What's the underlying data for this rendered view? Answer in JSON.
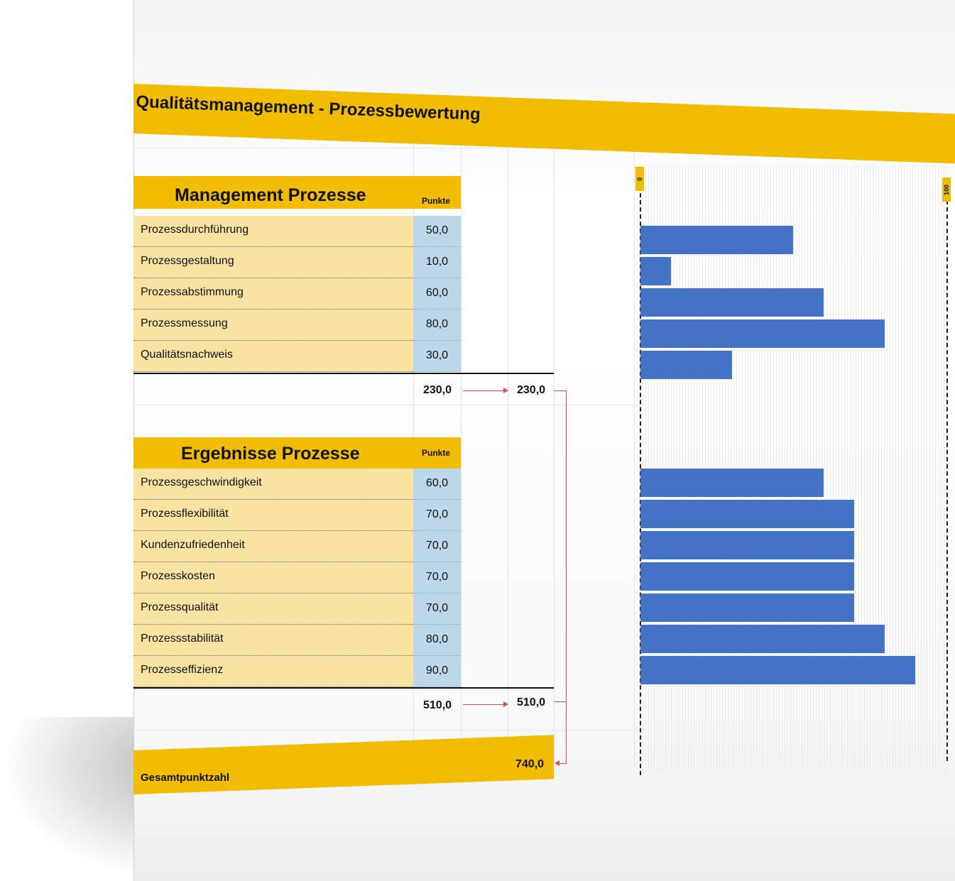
{
  "title": "Qualitätsmanagement - Prozessbewertung",
  "colors": {
    "accent": "#f2bd00",
    "label_bg": "#f8e3a3",
    "value_bg": "#bcd6ea",
    "bar": "#4472c4",
    "arrow": "#e84a4a"
  },
  "management": {
    "title": "Management Prozesse",
    "punkte_label": "Punkte",
    "rows": [
      {
        "label": "Prozessdurchführung",
        "value": "50,0"
      },
      {
        "label": "Prozessgestaltung",
        "value": "10,0"
      },
      {
        "label": "Prozessabstimmung",
        "value": "60,0"
      },
      {
        "label": "Prozessmessung",
        "value": "80,0"
      },
      {
        "label": "Qualitätsnachweis",
        "value": "30,0"
      }
    ],
    "sum": "230,0",
    "sum_carry": "230,0"
  },
  "ergebnisse": {
    "title": "Ergebnisse Prozesse",
    "punkte_label": "Punkte",
    "rows": [
      {
        "label": "Prozessgeschwindigkeit",
        "value": "60,0"
      },
      {
        "label": "Prozessflexibilität",
        "value": "70,0"
      },
      {
        "label": "Kundenzufriedenheit",
        "value": "70,0"
      },
      {
        "label": "Prozesskosten",
        "value": "70,0"
      },
      {
        "label": "Prozessqualität",
        "value": "70,0"
      },
      {
        "label": "Prozessstabilität",
        "value": "80,0"
      },
      {
        "label": "Prozesseffizienz",
        "value": "90,0"
      }
    ],
    "sum": "510,0",
    "sum_carry": "510,0"
  },
  "total": {
    "label": "Gesamtpunktzahl",
    "value": "740,0"
  },
  "chart_data": {
    "type": "bar",
    "orientation": "horizontal",
    "xlim": [
      0,
      100
    ],
    "tick_labels": [
      "0",
      "100"
    ],
    "groups": [
      {
        "categories": [
          "Prozessdurchführung",
          "Prozessgestaltung",
          "Prozessabstimmung",
          "Prozessmessung",
          "Qualitätsnachweis"
        ],
        "values": [
          50,
          10,
          60,
          80,
          30
        ]
      },
      {
        "categories": [
          "Prozessgeschwindigkeit",
          "Prozessflexibilität",
          "Kundenzufriedenheit",
          "Prozesskosten",
          "Prozessqualität",
          "Prozessstabilität",
          "Prozesseffizienz"
        ],
        "values": [
          60,
          70,
          70,
          70,
          70,
          80,
          90
        ]
      }
    ]
  }
}
